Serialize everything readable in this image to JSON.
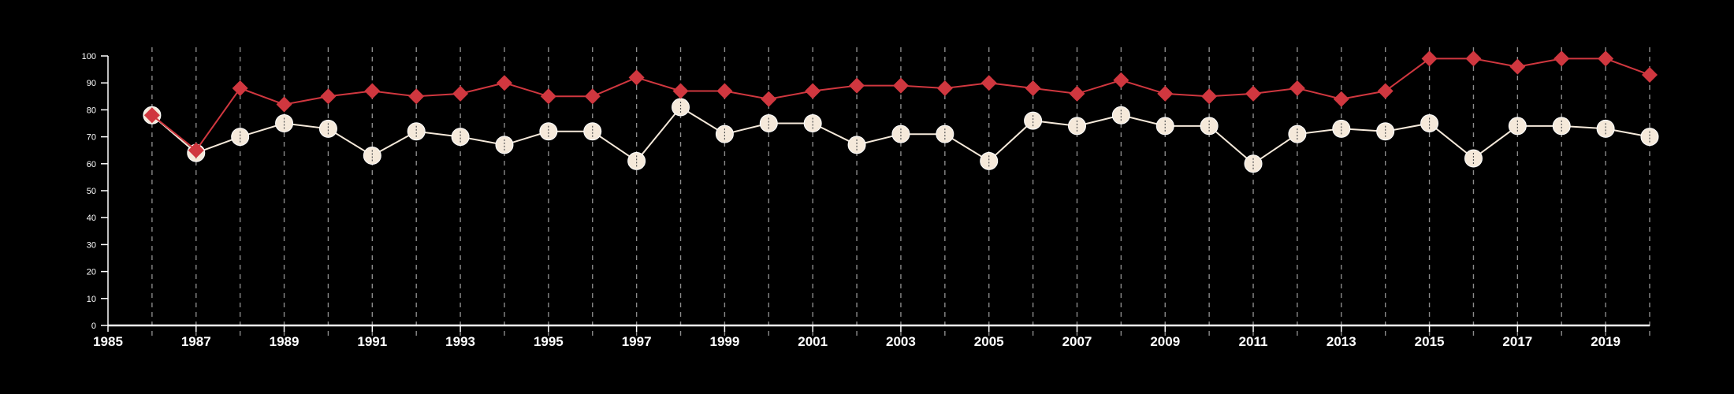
{
  "chart_data": {
    "type": "line",
    "title": "",
    "xlabel": "",
    "ylabel": "",
    "x": [
      1986,
      1987,
      1988,
      1989,
      1990,
      1991,
      1992,
      1993,
      1994,
      1995,
      1996,
      1997,
      1998,
      1999,
      2000,
      2001,
      2002,
      2003,
      2004,
      2005,
      2006,
      2007,
      2008,
      2009,
      2010,
      2011,
      2012,
      2013,
      2014,
      2015,
      2016,
      2017,
      2018,
      2019,
      2020
    ],
    "xlim": [
      1985,
      2020
    ],
    "ylim": [
      0,
      100
    ],
    "xticks": [
      1985,
      1987,
      1989,
      1991,
      1993,
      1995,
      1997,
      1999,
      2001,
      2003,
      2005,
      2007,
      2009,
      2011,
      2013,
      2015,
      2017,
      2019
    ],
    "xtick_labels": [
      "1985",
      "1987",
      "1989",
      "1991",
      "1993",
      "1995",
      "1997",
      "1999",
      "2001",
      "2003",
      "2005",
      "2007",
      "2009",
      "2011",
      "2013",
      "2015",
      "2017",
      "2019"
    ],
    "yticks": [
      0,
      10,
      20,
      30,
      40,
      50,
      60,
      70,
      80,
      90,
      100
    ],
    "ytick_labels": [
      "0",
      "10",
      "20",
      "30",
      "40",
      "50",
      "60",
      "70",
      "80",
      "90",
      "100"
    ],
    "grid": "vertical dashed lines at each year",
    "legend": "none",
    "series": [
      {
        "marker": "diamond",
        "color": "#d0373f",
        "values": [
          78,
          65,
          88,
          82,
          85,
          87,
          85,
          86,
          90,
          85,
          85,
          92,
          87,
          87,
          84,
          87,
          89,
          89,
          88,
          90,
          88,
          86,
          91,
          86,
          85,
          86,
          88,
          84,
          87,
          99,
          99,
          96,
          99,
          99,
          93
        ]
      },
      {
        "marker": "circle",
        "color": "#f5e9da",
        "values": [
          78,
          64,
          70,
          75,
          73,
          63,
          72,
          70,
          67,
          72,
          72,
          61,
          81,
          71,
          75,
          75,
          67,
          71,
          71,
          61,
          76,
          74,
          78,
          74,
          74,
          60,
          71,
          73,
          72,
          75,
          62,
          74,
          74,
          73,
          70
        ]
      }
    ]
  }
}
